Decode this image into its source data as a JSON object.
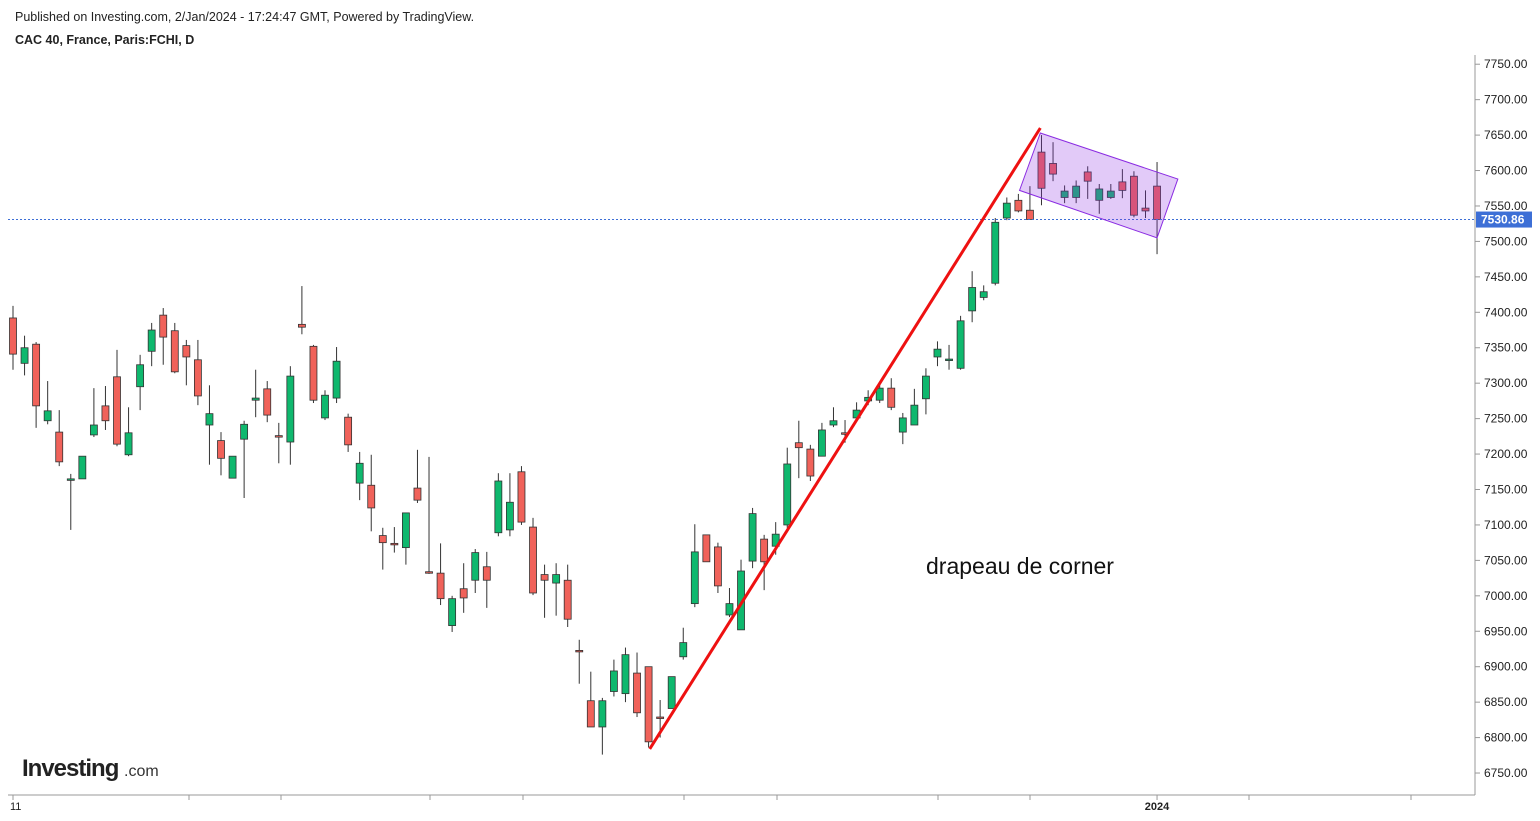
{
  "chart_data": {
    "type": "candlestick",
    "published": "Published on Investing.com, 2/Jan/2024 - 17:24:47 GMT, Powered by TradingView.",
    "title": "CAC 40, France, Paris:FCHI, D",
    "logo": {
      "name": "Investing",
      "suffix": ".com"
    },
    "annotation": "drapeau de corner",
    "categories": [
      "11",
      null,
      null,
      null,
      null,
      null,
      null,
      null,
      null,
      null,
      null,
      null,
      null,
      null,
      null,
      null,
      null,
      null,
      null,
      null,
      null,
      null,
      null,
      null,
      null,
      null,
      null,
      null,
      null,
      null,
      null,
      null,
      null,
      null,
      null,
      null,
      null,
      null,
      null,
      null,
      null,
      null,
      null,
      null,
      null,
      null,
      null,
      null,
      null,
      null,
      null,
      null,
      null,
      null,
      null,
      null,
      null,
      null,
      null,
      null,
      null,
      null,
      null,
      null,
      null,
      null,
      null,
      null,
      null,
      null,
      null,
      null,
      null,
      null,
      null,
      null,
      null,
      null,
      null,
      null,
      null,
      null,
      null,
      null,
      null,
      null,
      null,
      null,
      null,
      null,
      null,
      null,
      null,
      null,
      null,
      null,
      null,
      null,
      null,
      "2024"
    ],
    "open": [
      7392,
      7328,
      7355,
      7247,
      7231,
      7163,
      7165,
      7227,
      7268,
      7309,
      7199,
      7295,
      7345,
      7396,
      7374,
      7353,
      7333,
      7241,
      7219,
      7166,
      7221,
      7276,
      7292,
      7226,
      7217,
      7383,
      7352,
      7251,
      7279,
      7252,
      7159,
      7156,
      7085,
      7074,
      7068,
      7152,
      7034,
      7032,
      6958,
      7010,
      7022,
      7041,
      7089,
      7093,
      7175,
      7097,
      7030,
      7018,
      7022,
      6923,
      6852,
      6815,
      6865,
      6862,
      6891,
      6900,
      6829,
      6841,
      6914,
      6989,
      7086,
      7069,
      6973,
      6952,
      7049,
      7080,
      7070,
      7100,
      7216,
      7207,
      7197,
      7241,
      7230,
      7251,
      7275,
      7276,
      7293,
      7231,
      7241,
      7278,
      7337,
      7334,
      7321,
      7402,
      7421,
      7441,
      7533,
      7558,
      7544,
      7626,
      7610,
      7562,
      7562,
      7598,
      7558,
      7562,
      7584,
      7592,
      7547,
      7578
    ],
    "high": [
      7409,
      7367,
      7358,
      7303,
      7262,
      7172,
      7197,
      7293,
      7296,
      7347,
      7266,
      7340,
      7385,
      7406,
      7385,
      7361,
      7361,
      7297,
      7231,
      7197,
      7247,
      7319,
      7303,
      7244,
      7324,
      7437,
      7354,
      7290,
      7351,
      7257,
      7203,
      7199,
      7096,
      7097,
      7117,
      7206,
      7196,
      7074,
      7000,
      7046,
      7066,
      7062,
      7173,
      7173,
      7183,
      7110,
      7044,
      7046,
      7044,
      6938,
      6893,
      6856,
      6910,
      6927,
      6920,
      6900,
      6853,
      6886,
      6955,
      7101,
      7086,
      7075,
      7011,
      7051,
      7124,
      7086,
      7104,
      7209,
      7247,
      7213,
      7244,
      7266,
      7248,
      7273,
      7290,
      7302,
      7307,
      7258,
      7292,
      7321,
      7359,
      7354,
      7395,
      7458,
      7438,
      7533,
      7562,
      7567,
      7578,
      7650,
      7640,
      7579,
      7586,
      7606,
      7581,
      7581,
      7602,
      7599,
      7572,
      7612
    ],
    "low": [
      7319,
      7311,
      7237,
      7242,
      7183,
      7093,
      7165,
      7224,
      7234,
      7211,
      7197,
      7262,
      7324,
      7326,
      7314,
      7297,
      7269,
      7185,
      7170,
      7166,
      7138,
      7252,
      7245,
      7187,
      7185,
      7369,
      7272,
      7248,
      7272,
      7203,
      7135,
      7091,
      7037,
      7061,
      7044,
      7131,
      7031,
      6987,
      6949,
      6976,
      7004,
      6983,
      7084,
      7084,
      7100,
      7001,
      6969,
      6972,
      6956,
      6876,
      6815,
      6776,
      6858,
      6850,
      6829,
      6786,
      6800,
      6841,
      6910,
      6984,
      7048,
      7004,
      6970,
      6952,
      7039,
      7008,
      7058,
      7096,
      7166,
      7162,
      7197,
      7238,
      7216,
      7251,
      7269,
      7272,
      7262,
      7214,
      7241,
      7256,
      7324,
      7319,
      7319,
      7386,
      7417,
      7438,
      7530,
      7541,
      7531,
      7551,
      7585,
      7554,
      7554,
      7560,
      7539,
      7560,
      7561,
      7534,
      7533,
      7482
    ],
    "close": [
      7341,
      7350,
      7268,
      7261,
      7189,
      7165,
      7197,
      7241,
      7247,
      7214,
      7230,
      7326,
      7375,
      7365,
      7316,
      7337,
      7282,
      7257,
      7194,
      7197,
      7242,
      7279,
      7255,
      7225,
      7310,
      7379,
      7276,
      7283,
      7331,
      7213,
      7187,
      7124,
      7075,
      7073,
      7117,
      7135,
      7033,
      6996,
      6996,
      6997,
      7061,
      7022,
      7162,
      7132,
      7104,
      7004,
      7022,
      7030,
      6967,
      6922,
      6815,
      6852,
      6894,
      6917,
      6835,
      6794,
      6828,
      6886,
      6934,
      7062,
      7048,
      7014,
      6989,
      7035,
      7116,
      7048,
      7087,
      7186,
      7209,
      7169,
      7234,
      7247,
      7229,
      7262,
      7280,
      7293,
      7266,
      7251,
      7269,
      7310,
      7348,
      7334,
      7388,
      7435,
      7429,
      7527,
      7554,
      7543,
      7531,
      7575,
      7595,
      7571,
      7578,
      7585,
      7574,
      7571,
      7572,
      7537,
      7543,
      7531
    ],
    "up_color": "#0fb86e",
    "down_color": "#f0625a",
    "ylim": [
      6719,
      7763
    ],
    "yticks": [
      {
        "value": 6750,
        "label": "6750.00"
      },
      {
        "value": 6800,
        "label": "6800.00"
      },
      {
        "value": 6850,
        "label": "6850.00"
      },
      {
        "value": 6900,
        "label": "6900.00"
      },
      {
        "value": 6950,
        "label": "6950.00"
      },
      {
        "value": 7000,
        "label": "7000.00"
      },
      {
        "value": 7050,
        "label": "7050.00"
      },
      {
        "value": 7100,
        "label": "7100.00"
      },
      {
        "value": 7150,
        "label": "7150.00"
      },
      {
        "value": 7200,
        "label": "7200.00"
      },
      {
        "value": 7250,
        "label": "7250.00"
      },
      {
        "value": 7300,
        "label": "7300.00"
      },
      {
        "value": 7350,
        "label": "7350.00"
      },
      {
        "value": 7400,
        "label": "7400.00"
      },
      {
        "value": 7450,
        "label": "7450.00"
      },
      {
        "value": 7500,
        "label": "7500.00"
      },
      {
        "value": 7550,
        "label": "7550.00"
      },
      {
        "value": 7600,
        "label": "7600.00"
      },
      {
        "value": 7650,
        "label": "7650.00"
      },
      {
        "value": 7700,
        "label": "7700.00"
      },
      {
        "value": 7750,
        "label": "7750.00"
      }
    ],
    "last_price": {
      "value": 7530.86,
      "label": "7530.86",
      "color": "#3d6fd6"
    },
    "trendline": {
      "points": [
        [
          55.1,
          6784
        ],
        [
          88.9,
          7660
        ]
      ],
      "color": "#ee1111"
    },
    "flag": {
      "points": [
        [
          88.9,
          7653
        ],
        [
          100.8,
          7588
        ],
        [
          99.0,
          7505
        ],
        [
          87.1,
          7572
        ]
      ],
      "color": "#8a2be2"
    }
  }
}
